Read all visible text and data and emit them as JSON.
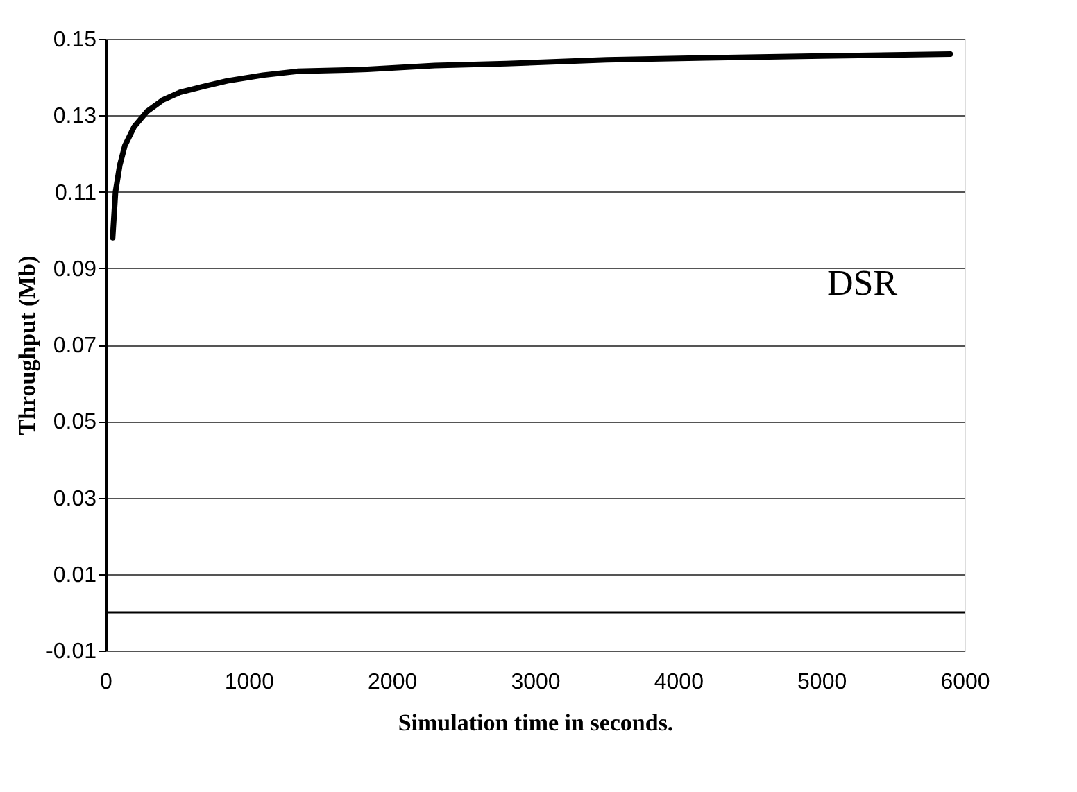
{
  "chart_data": {
    "type": "line",
    "xlabel": "Simulation time in seconds.",
    "ylabel": "Throughput (Mb)",
    "xlim": [
      0,
      6000
    ],
    "xticks": [
      0,
      1000,
      2000,
      3000,
      4000,
      5000,
      6000
    ],
    "ylim": [
      -0.01,
      0.15
    ],
    "yticks": [
      -0.01,
      0.01,
      0.03,
      0.05,
      0.07,
      0.09,
      0.11,
      0.13,
      0.15
    ],
    "grid": "y",
    "legend": false,
    "marker": "none",
    "line_style": "solid",
    "ref_lines": [
      {
        "axis": "y",
        "value": 0,
        "color": "#000000"
      }
    ],
    "series": [
      {
        "name": "DSR",
        "color": "#000000",
        "x": [
          50,
          70,
          100,
          135,
          200,
          290,
          400,
          520,
          680,
          850,
          1100,
          1340,
          1830,
          2300,
          2800,
          3500,
          4200,
          5000,
          5900
        ],
        "values": [
          0.098,
          0.11,
          0.117,
          0.122,
          0.127,
          0.131,
          0.134,
          0.136,
          0.1375,
          0.139,
          0.1405,
          0.1415,
          0.142,
          0.143,
          0.1435,
          0.1445,
          0.145,
          0.1455,
          0.146
        ]
      }
    ]
  }
}
